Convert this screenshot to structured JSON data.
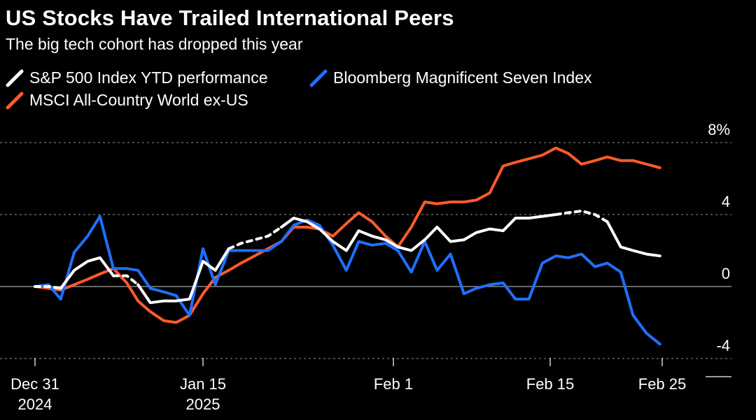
{
  "colors": {
    "background": "#000000",
    "sp500": "#ffffff",
    "mag7": "#1f6fff",
    "msci": "#ff5a2a",
    "grid": "#777777"
  },
  "chart_data": {
    "type": "line",
    "title": "US Stocks Have Trailed International Peers",
    "subtitle": "The big tech cohort has dropped this year",
    "xlabel": "",
    "ylabel": "",
    "ylim": [
      -6,
      10
    ],
    "xlim": [
      0,
      57
    ],
    "y_ticks": [
      {
        "value": 8,
        "label": "8%"
      },
      {
        "value": 4,
        "label": "4"
      },
      {
        "value": 0,
        "label": "0"
      },
      {
        "value": -4,
        "label": "-4"
      }
    ],
    "x_ticks": [
      {
        "day": 0,
        "label": "Dec 31",
        "sublabel": "2024"
      },
      {
        "day": 15,
        "label": "Jan 15",
        "sublabel": "2025"
      },
      {
        "day": 32,
        "label": "Feb 1",
        "sublabel": ""
      },
      {
        "day": 46,
        "label": "Feb 15",
        "sublabel": ""
      },
      {
        "day": 56,
        "label": "Feb 25",
        "sublabel": ""
      }
    ],
    "series": [
      {
        "key": "msci",
        "name": "MSCI All-Country World ex-US",
        "color": "#ff5a2a",
        "x": [
          0,
          1.2,
          2.3,
          3.5,
          4.7,
          5.8,
          7,
          8.2,
          9.2,
          10.3,
          11.5,
          12.6,
          13.8,
          15,
          16.1,
          17.3,
          18.4,
          19.6,
          20.8,
          22,
          23.1,
          24.3,
          25.4,
          26.6,
          27.8,
          28.9,
          30.1,
          31.3,
          32.4,
          33.6,
          34.8,
          35.9,
          37.1,
          38.3,
          39.4,
          40.6,
          41.8,
          42.9,
          44.1,
          45.3,
          46.5,
          47.6,
          48.8,
          50,
          51.1,
          52.3,
          53.4,
          54.6,
          55.8
        ],
        "values": [
          0,
          -0.1,
          -0.2,
          0.1,
          0.4,
          0.7,
          1.0,
          0.2,
          -0.8,
          -1.4,
          -1.9,
          -2.0,
          -1.6,
          -0.4,
          0.5,
          0.9,
          1.3,
          1.7,
          2.1,
          2.5,
          3.3,
          3.3,
          3.2,
          2.8,
          3.5,
          4.1,
          3.6,
          2.8,
          2.2,
          3.3,
          4.7,
          4.6,
          4.7,
          4.7,
          4.8,
          5.2,
          6.7,
          6.9,
          7.1,
          7.3,
          7.7,
          7.4,
          6.8,
          7.0,
          7.2,
          7.0,
          7.0,
          6.8,
          6.6
        ]
      },
      {
        "key": "mag7",
        "name": "Bloomberg Magnificent Seven Index",
        "color": "#1f6fff",
        "x": [
          0,
          1.2,
          2.3,
          3.5,
          4.7,
          5.8,
          7,
          8.2,
          9.2,
          10.3,
          11.5,
          12.6,
          13.8,
          15,
          16.1,
          17.3,
          18.4,
          19.6,
          20.8,
          22,
          23.1,
          24.3,
          25.4,
          26.6,
          27.8,
          28.9,
          30.1,
          31.3,
          32.4,
          33.6,
          34.8,
          35.9,
          37.1,
          38.3,
          39.4,
          40.6,
          41.8,
          42.9,
          44.1,
          45.3,
          46.5,
          47.6,
          48.8,
          50,
          51.1,
          52.3,
          53.4,
          54.6,
          55.8
        ],
        "values": [
          0,
          0.1,
          -0.7,
          1.9,
          2.8,
          3.9,
          1.0,
          1.0,
          0.9,
          -0.1,
          -0.3,
          -0.5,
          -1.6,
          2.1,
          0.1,
          2.0,
          2.0,
          2.0,
          2.0,
          2.5,
          3.4,
          3.7,
          3.4,
          2.3,
          0.9,
          2.5,
          2.3,
          2.4,
          2.0,
          0.8,
          2.5,
          0.9,
          1.8,
          -0.4,
          -0.1,
          0.1,
          0.2,
          -0.7,
          -0.7,
          1.3,
          1.7,
          1.6,
          1.8,
          1.1,
          1.3,
          0.8,
          -1.6,
          -2.6,
          -3.2
        ]
      },
      {
        "key": "sp500",
        "name": "S&P 500 Index YTD performance",
        "color": "#ffffff",
        "x": [
          0,
          1.2,
          2.3,
          3.5,
          4.7,
          5.8,
          7,
          8.2,
          9.2,
          10.3,
          11.5,
          12.6,
          13.8,
          15,
          16.1,
          17.3,
          18.4,
          19.6,
          20.8,
          22,
          23.1,
          24.3,
          25.4,
          26.6,
          27.8,
          28.9,
          30.1,
          31.3,
          32.4,
          33.6,
          34.8,
          35.9,
          37.1,
          38.3,
          39.4,
          40.6,
          41.8,
          42.9,
          44.1,
          45.3,
          46.5,
          47.6,
          48.8,
          50,
          51.1,
          52.3,
          53.4,
          54.6,
          55.8
        ],
        "values": [
          0,
          0.0,
          -0.1,
          0.9,
          1.4,
          1.6,
          0.6,
          0.6,
          0.1,
          -0.9,
          -0.8,
          -0.8,
          -0.7,
          1.4,
          0.9,
          2.1,
          2.4,
          2.6,
          2.8,
          3.3,
          3.8,
          3.6,
          3.2,
          2.5,
          2.0,
          3.1,
          2.8,
          2.6,
          2.2,
          2.0,
          2.6,
          3.3,
          2.5,
          2.6,
          3.0,
          3.2,
          3.1,
          3.8,
          3.8,
          3.9,
          4.0,
          4.1,
          4.2,
          4.0,
          3.6,
          2.2,
          2.0,
          1.8,
          1.7
        ],
        "dashed_segments": [
          [
            0,
            2
          ],
          [
            6,
            8
          ],
          [
            15,
            19
          ],
          [
            40,
            44
          ]
        ]
      }
    ]
  }
}
